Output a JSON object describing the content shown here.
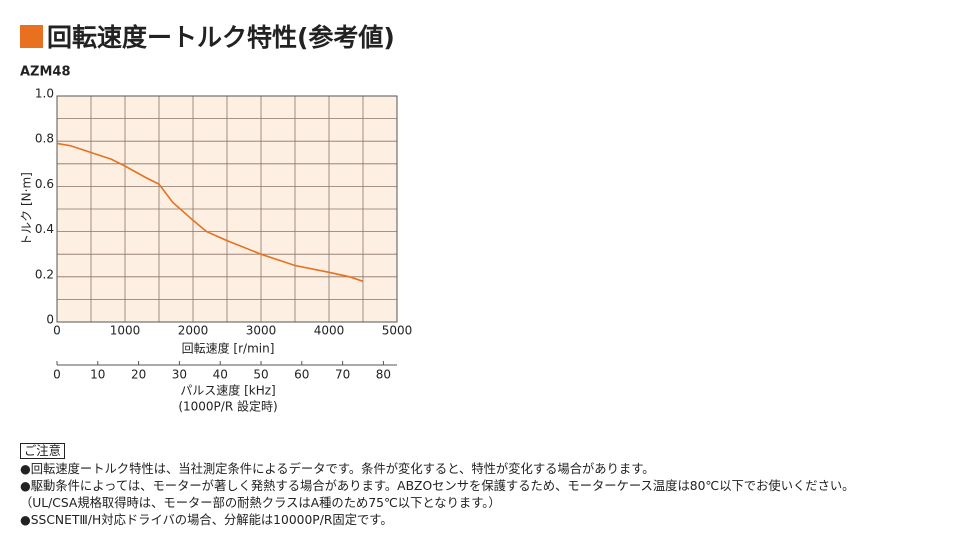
{
  "header": {
    "title": "回転速度ートルク特性(参考値)"
  },
  "chart_data": {
    "type": "line",
    "subtitle": "AZM48",
    "x": [
      0,
      200,
      500,
      800,
      1000,
      1300,
      1500,
      1700,
      2000,
      2200,
      2500,
      3000,
      3500,
      4000,
      4300,
      4500
    ],
    "values": [
      0.79,
      0.78,
      0.75,
      0.72,
      0.69,
      0.64,
      0.61,
      0.53,
      0.45,
      0.4,
      0.36,
      0.3,
      0.25,
      0.22,
      0.2,
      0.18
    ],
    "color": "#e8701e",
    "xlim": [
      0,
      5000
    ],
    "xticks": [
      0,
      1000,
      2000,
      3000,
      4000,
      5000
    ],
    "ylim": [
      0,
      1
    ],
    "yticks": [
      0,
      0.2,
      0.4,
      0.6,
      0.8,
      {
        "value": 1,
        "label": "1.0"
      }
    ],
    "grid": true,
    "xlabel": "回転速度 [r/min]",
    "ylabel": "トルク [N·m]",
    "x2lim": [
      0,
      83.33
    ],
    "x2ticks": [
      0,
      10,
      20,
      30,
      40,
      50,
      60,
      70,
      80
    ],
    "x2label": "パルス速度 [kHz]",
    "x2note": "(1000P/R 設定時)"
  },
  "notes": {
    "heading": "ご注意",
    "lines": [
      "●回転速度ートルク特性は、当社測定条件によるデータです。条件が変化すると、特性が変化する場合があります。",
      "●駆動条件によっては、モーターが著しく発熱する場合があります。ABZOセンサを保護するため、モーターケース温度は80℃以下でお使いください。",
      "（UL/CSA規格取得時は、モーター部の耐熱クラスはA種のため75℃以下となります。）",
      "●SSCNETⅢ/H対応ドライバの場合、分解能は10000P/R固定です。"
    ]
  }
}
